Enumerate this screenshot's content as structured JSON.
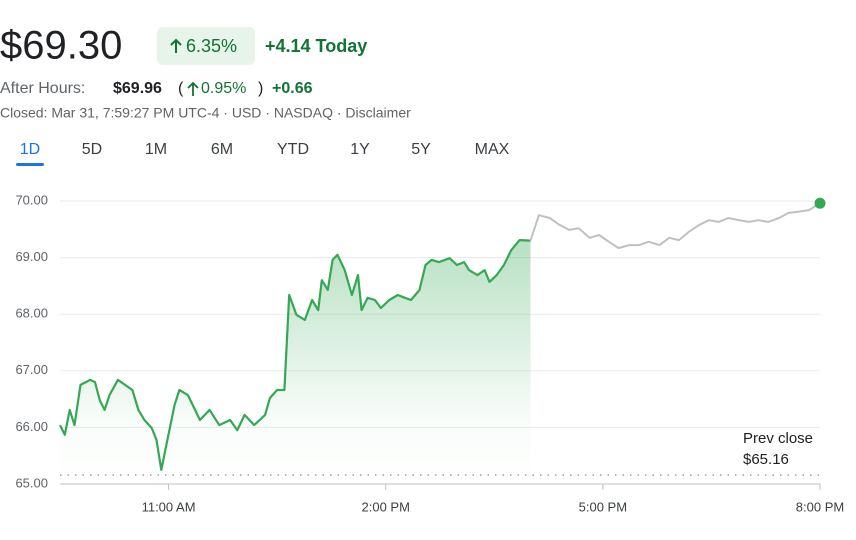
{
  "header": {
    "price": "$69.30",
    "change_percent": "6.35%",
    "change_today": "+4.14 Today",
    "after_hours_label": "After Hours:",
    "after_hours_price": "$69.96",
    "after_hours_percent": "0.95%",
    "after_hours_change": "+0.66",
    "closed_line": "Closed: Mar 31, 7:59:27 PM UTC-4 · USD · NASDAQ · Disclaimer",
    "tabs": [
      "1D",
      "5D",
      "1M",
      "6M",
      "YTD",
      "1Y",
      "5Y",
      "MAX"
    ],
    "active_tab": 0
  },
  "chart_data": {
    "type": "line",
    "series": [
      {
        "color": "#34a853",
        "x": [
          570,
          574,
          578,
          582,
          587,
          595,
          599,
          603,
          607,
          611,
          618,
          624,
          630,
          635,
          640,
          646,
          650,
          654,
          659,
          665,
          669,
          676,
          682,
          686,
          694,
          702,
          711,
          717,
          723,
          731,
          740,
          744,
          750,
          756,
          760,
          766,
          773,
          779,
          784,
          787,
          792,
          796,
          800,
          806,
          812,
          817,
          820,
          825,
          831,
          836,
          843,
          850,
          856,
          861,
          868,
          873,
          878,
          884,
          893,
          899,
          905,
          909,
          916,
          922,
          926,
          932,
          938,
          944,
          951,
          960
        ],
        "values": [
          66.04,
          65.87,
          66.31,
          66.04,
          66.75,
          66.84,
          66.8,
          66.48,
          66.31,
          66.57,
          66.84,
          66.75,
          66.66,
          66.31,
          66.13,
          65.99,
          65.78,
          65.25,
          65.78,
          66.4,
          66.66,
          66.57,
          66.31,
          66.13,
          66.31,
          66.04,
          66.13,
          65.95,
          66.22,
          66.04,
          66.22,
          66.52,
          66.66,
          66.66,
          68.34,
          67.99,
          67.9,
          68.25,
          68.07,
          68.6,
          68.43,
          68.96,
          69.05,
          68.78,
          68.34,
          68.69,
          68.07,
          68.29,
          68.25,
          68.11,
          68.25,
          68.34,
          68.29,
          68.25,
          68.43,
          68.87,
          68.96,
          68.92,
          68.99,
          68.87,
          68.92,
          68.78,
          68.69,
          68.78,
          68.57,
          68.69,
          68.87,
          69.13,
          69.31,
          69.3
        ]
      },
      {
        "color": "#bdc1c6",
        "x": [
          960,
          967,
          976,
          984,
          992,
          1000,
          1009,
          1017,
          1025,
          1033,
          1042,
          1050,
          1058,
          1067,
          1075,
          1083,
          1091,
          1100,
          1108,
          1116,
          1124,
          1133,
          1141,
          1149,
          1157,
          1166,
          1174,
          1182,
          1191,
          1200
        ],
        "values": [
          69.3,
          69.75,
          69.7,
          69.58,
          69.49,
          69.52,
          69.35,
          69.4,
          69.28,
          69.17,
          69.22,
          69.22,
          69.28,
          69.22,
          69.35,
          69.31,
          69.45,
          69.58,
          69.66,
          69.63,
          69.7,
          69.66,
          69.63,
          69.66,
          69.63,
          69.7,
          69.79,
          69.81,
          69.84,
          69.96
        ]
      }
    ],
    "xlim": [
      570,
      1200
    ],
    "xticks": [
      {
        "value": 660,
        "label": "11:00 AM"
      },
      {
        "value": 840,
        "label": "2:00 PM"
      },
      {
        "value": 1020,
        "label": "5:00 PM"
      },
      {
        "value": 1200,
        "label": "8:00 PM"
      }
    ],
    "ylim": [
      65,
      70
    ],
    "yticks": [
      {
        "value": 65,
        "label": "65.00"
      },
      {
        "value": 66,
        "label": "66.00"
      },
      {
        "value": 67,
        "label": "67.00"
      },
      {
        "value": 68,
        "label": "68.00"
      },
      {
        "value": 69,
        "label": "69.00"
      },
      {
        "value": 70,
        "label": "70.00"
      }
    ],
    "grid": true,
    "prev_close": {
      "label": "Prev close",
      "value": 65.16,
      "value_label": "$65.16"
    }
  }
}
